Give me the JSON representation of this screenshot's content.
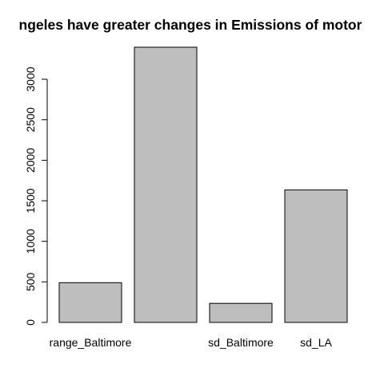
{
  "chart_data": {
    "type": "bar",
    "title": "ngeles have greater changes in Emissions of motor",
    "categories": [
      "range_Baltimore",
      "",
      "sd_Baltimore",
      "sd_LA"
    ],
    "values": [
      490,
      3395,
      235,
      1635
    ],
    "ylim": [
      0,
      3395
    ],
    "yticks": [
      0,
      500,
      1000,
      1500,
      2000,
      2500,
      3000
    ],
    "xlabel": "",
    "ylabel": "",
    "grid": false,
    "colors": {
      "bar_fill": "#bebebe",
      "bar_stroke": "#000000"
    }
  }
}
